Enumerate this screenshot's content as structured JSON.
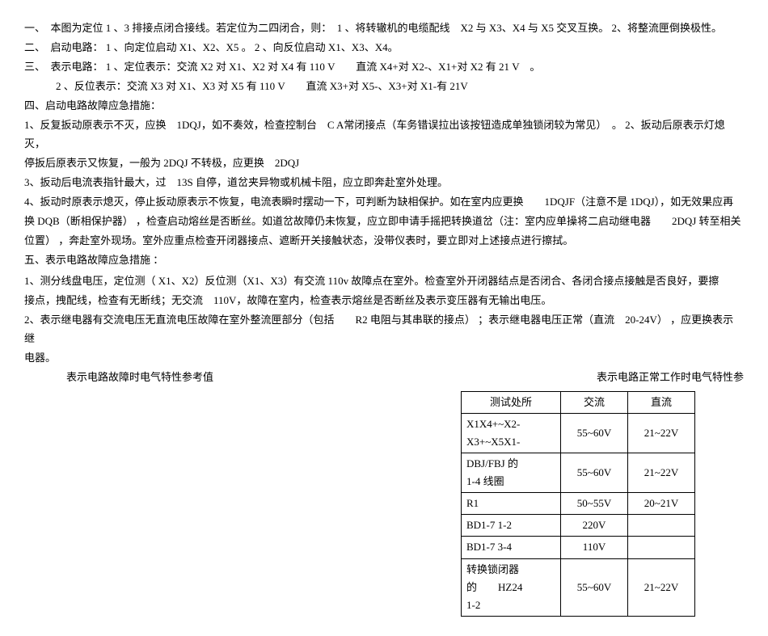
{
  "p1": "一、　本图为定位 1 、3 排接点闭合接线。若定位为二四闭合，则：　1 、将转辙机的电缆配线　X2 与 X3、X4 与 X5 交叉互换。 2、将整流匣倒换极性。",
  "p2": "二、　启动电路： 1 、向定位启动 X1、X2、X5 。 2 、向反位启动 X1、X3、X4。",
  "p3": "三、　表示电路： 1 、定位表示：交流 X2 对 X1、X2 对 X4 有 110 V　　直流 X4+对 X2-、X1+对 X2 有 21 V　。",
  "p4": "2 、反位表示：交流 X3 对 X1、X3 对 X5 有 110 V　　直流 X3+对 X5-、X3+对 X1-有 21V",
  "p5": "四、启动电路故障应急措施：",
  "p6": "1、反复扳动原表示不灭，应换　1DQJ，如不奏效，检查控制台　C A常闭接点（车务错误拉出该按钮造成单独锁闭较为常见）　。 2、扳动后原表示灯熄灭，",
  "p7": "停扳后原表示又恢复，一般为 2DQJ 不转极，应更换　2DQJ",
  "p8": "3、扳动后电流表指针最大，过　13S 自停，道岔夹异物或机械卡阻，应立即奔赴室外处理。",
  "p9": "4、扳动时原表示熄灭，停止扳动原表示不恢复，电流表瞬时摆动一下，可判断为缺相保护。如在室内应更换　　1DQJF（注意不是 1DQJ），如无效果应再",
  "p10": "换 DQB（断相保护器） ，检查启动熔丝是否断丝。如道岔故障仍未恢复，应立即申请手摇把转换道岔（注：室内应单操将二启动继电器　　2DQJ 转至相关",
  "p11": "位置） ，奔赴室外现场。室外应重点检查开闭器接点、遮断开关接触状态，没带仪表时，要立即对上述接点进行擦拭。",
  "p12": "五、表示电路故障应急措施 ：",
  "p13": "1、测分线盘电压，定位测（ X1、X2）反位测（X1、X3）有交流 110v 故障点在室外。检查室外开闭器结点是否闭合、各闭合接点接触是否良好，要擦",
  "p14": "接点，拽配线，检查有无断线；无交流　110V，故障在室内，检查表示熔丝是否断丝及表示变压器有无输出电压。",
  "p15": "2、表示继电器有交流电压无直流电压故障在室外整流匣部分（包括　　R2 电阻与其串联的接点） ；表示继电器电压正常（直流　20-24V） ，应更换表示继",
  "p16": "电器。",
  "refLeft": "表示电路故障时电气特性参考值",
  "refRight": "表示电路正常工作时电气特性参",
  "table": {
    "headers": [
      "测试处所",
      "交流",
      "直流"
    ],
    "rows": [
      [
        "X1X4+~X2-\nX3+~X5X1-",
        "55~60V",
        "21~22V"
      ],
      [
        "DBJ/FBJ 的\n1-4 线圈",
        "55~60V",
        "21~22V"
      ],
      [
        "R1",
        "50~55V",
        "20~21V"
      ],
      [
        "BD1-7 1-2",
        "220V",
        ""
      ],
      [
        "BD1-7 3-4",
        "110V",
        ""
      ],
      [
        "转换锁闭器\n的　　HZ24\n1-2",
        "55~60V",
        "21~22V"
      ]
    ],
    "colWidths": [
      "110px",
      "70px",
      "70px"
    ]
  }
}
